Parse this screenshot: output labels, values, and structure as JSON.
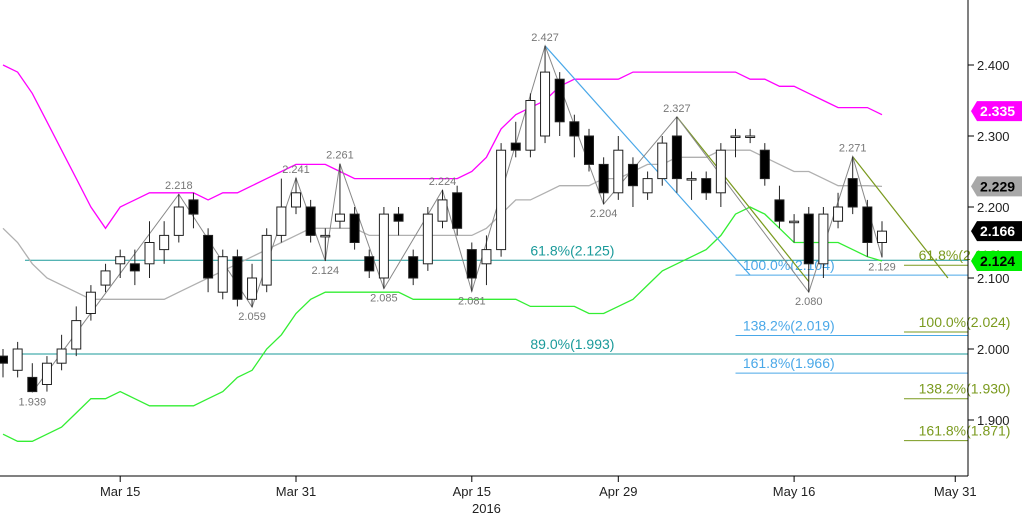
{
  "chart_data": {
    "type": "candlestick",
    "colors": {
      "upper_band": "#ff00ff",
      "lower_band": "#33ee33",
      "mid_ma": "#b0b0b0",
      "fib_teal": "#1a9a9a",
      "fib_blue": "#4aa8e8",
      "fib_olive": "#7a9a1e",
      "zigzag": "#888888",
      "candle_outline": "#222222"
    },
    "x_axis": {
      "year_label": "2016",
      "ticks": [
        {
          "label": "Mar 15",
          "index": 8
        },
        {
          "label": "Mar 31",
          "index": 20
        },
        {
          "label": "Apr 15",
          "index": 32
        },
        {
          "label": "Apr 29",
          "index": 42
        },
        {
          "label": "May 16",
          "index": 54
        },
        {
          "label": "May 31",
          "index": 65
        }
      ]
    },
    "y_axis": {
      "min": 1.83,
      "max": 2.5,
      "ticks": [
        "1.900",
        "2.000",
        "2.100",
        "2.200",
        "2.300",
        "2.400"
      ]
    },
    "candles": [
      [
        1.99,
        1.98,
        2.0,
        1.96
      ],
      [
        1.97,
        2.0,
        2.01,
        1.96
      ],
      [
        1.96,
        1.94,
        1.98,
        1.939
      ],
      [
        1.95,
        1.98,
        1.99,
        1.94
      ],
      [
        1.98,
        2.0,
        2.02,
        1.97
      ],
      [
        2.0,
        2.04,
        2.06,
        1.99
      ],
      [
        2.05,
        2.08,
        2.09,
        2.04
      ],
      [
        2.09,
        2.11,
        2.12,
        2.08
      ],
      [
        2.12,
        2.13,
        2.14,
        2.1
      ],
      [
        2.12,
        2.11,
        2.14,
        2.09
      ],
      [
        2.12,
        2.15,
        2.18,
        2.1
      ],
      [
        2.14,
        2.16,
        2.18,
        2.12
      ],
      [
        2.16,
        2.2,
        2.218,
        2.15
      ],
      [
        2.21,
        2.19,
        2.22,
        2.17
      ],
      [
        2.16,
        2.1,
        2.17,
        2.08
      ],
      [
        2.08,
        2.13,
        2.14,
        2.07
      ],
      [
        2.13,
        2.07,
        2.14,
        2.06
      ],
      [
        2.07,
        2.1,
        2.12,
        2.059
      ],
      [
        2.09,
        2.16,
        2.17,
        2.08
      ],
      [
        2.16,
        2.2,
        2.24,
        2.15
      ],
      [
        2.2,
        2.22,
        2.241,
        2.19
      ],
      [
        2.2,
        2.16,
        2.21,
        2.15
      ],
      [
        2.16,
        2.16,
        2.17,
        2.124
      ],
      [
        2.18,
        2.19,
        2.261,
        2.17
      ],
      [
        2.19,
        2.15,
        2.2,
        2.14
      ],
      [
        2.13,
        2.11,
        2.14,
        2.1
      ],
      [
        2.1,
        2.19,
        2.2,
        2.085
      ],
      [
        2.19,
        2.18,
        2.2,
        2.16
      ],
      [
        2.13,
        2.1,
        2.14,
        2.09
      ],
      [
        2.12,
        2.19,
        2.2,
        2.11
      ],
      [
        2.18,
        2.21,
        2.224,
        2.17
      ],
      [
        2.22,
        2.17,
        2.23,
        2.16
      ],
      [
        2.14,
        2.1,
        2.15,
        2.081
      ],
      [
        2.12,
        2.14,
        2.16,
        2.09
      ],
      [
        2.14,
        2.28,
        2.29,
        2.13
      ],
      [
        2.29,
        2.28,
        2.32,
        2.27
      ],
      [
        2.28,
        2.35,
        2.36,
        2.27
      ],
      [
        2.3,
        2.39,
        2.427,
        2.29
      ],
      [
        2.38,
        2.32,
        2.39,
        2.3
      ],
      [
        2.32,
        2.3,
        2.33,
        2.27
      ],
      [
        2.3,
        2.26,
        2.31,
        2.25
      ],
      [
        2.26,
        2.22,
        2.27,
        2.204
      ],
      [
        2.22,
        2.28,
        2.3,
        2.21
      ],
      [
        2.26,
        2.23,
        2.27,
        2.2
      ],
      [
        2.22,
        2.24,
        2.25,
        2.21
      ],
      [
        2.24,
        2.29,
        2.3,
        2.23
      ],
      [
        2.3,
        2.24,
        2.327,
        2.22
      ],
      [
        2.24,
        2.24,
        2.25,
        2.21
      ],
      [
        2.24,
        2.22,
        2.25,
        2.21
      ],
      [
        2.22,
        2.28,
        2.29,
        2.2
      ],
      [
        2.3,
        2.3,
        2.31,
        2.27
      ],
      [
        2.3,
        2.3,
        2.31,
        2.29
      ],
      [
        2.28,
        2.24,
        2.29,
        2.23
      ],
      [
        2.21,
        2.18,
        2.23,
        2.17
      ],
      [
        2.18,
        2.18,
        2.19,
        2.15
      ],
      [
        2.19,
        2.12,
        2.2,
        2.08
      ],
      [
        2.12,
        2.19,
        2.2,
        2.1
      ],
      [
        2.18,
        2.2,
        2.22,
        2.17
      ],
      [
        2.24,
        2.2,
        2.271,
        2.19
      ],
      [
        2.2,
        2.15,
        2.21,
        2.13
      ],
      [
        2.15,
        2.166,
        2.18,
        2.129
      ]
    ],
    "upper_band": [
      2.4,
      2.39,
      2.36,
      2.32,
      2.28,
      2.24,
      2.2,
      2.17,
      2.2,
      2.21,
      2.22,
      2.22,
      2.22,
      2.22,
      2.21,
      2.22,
      2.22,
      2.23,
      2.24,
      2.25,
      2.26,
      2.26,
      2.26,
      2.25,
      2.24,
      2.24,
      2.24,
      2.24,
      2.24,
      2.24,
      2.24,
      2.24,
      2.25,
      2.27,
      2.31,
      2.33,
      2.34,
      2.35,
      2.37,
      2.38,
      2.38,
      2.38,
      2.38,
      2.39,
      2.39,
      2.39,
      2.39,
      2.39,
      2.39,
      2.39,
      2.39,
      2.38,
      2.38,
      2.37,
      2.37,
      2.36,
      2.35,
      2.34,
      2.34,
      2.34,
      2.33
    ],
    "lower_band": [
      1.88,
      1.87,
      1.87,
      1.88,
      1.89,
      1.91,
      1.93,
      1.93,
      1.94,
      1.93,
      1.92,
      1.92,
      1.92,
      1.92,
      1.93,
      1.94,
      1.96,
      1.97,
      2.0,
      2.02,
      2.05,
      2.07,
      2.08,
      2.08,
      2.08,
      2.08,
      2.08,
      2.08,
      2.07,
      2.07,
      2.07,
      2.07,
      2.07,
      2.07,
      2.07,
      2.07,
      2.06,
      2.06,
      2.06,
      2.06,
      2.05,
      2.05,
      2.06,
      2.07,
      2.09,
      2.11,
      2.12,
      2.13,
      2.14,
      2.16,
      2.19,
      2.2,
      2.19,
      2.17,
      2.15,
      2.15,
      2.15,
      2.15,
      2.14,
      2.13,
      2.124
    ],
    "mid_ma": [
      2.17,
      2.15,
      2.12,
      2.1,
      2.09,
      2.08,
      2.07,
      2.07,
      2.07,
      2.07,
      2.07,
      2.07,
      2.08,
      2.09,
      2.1,
      2.11,
      2.12,
      2.13,
      2.14,
      2.15,
      2.16,
      2.17,
      2.17,
      2.17,
      2.17,
      2.16,
      2.16,
      2.16,
      2.16,
      2.16,
      2.16,
      2.16,
      2.16,
      2.17,
      2.19,
      2.21,
      2.21,
      2.22,
      2.23,
      2.23,
      2.23,
      2.24,
      2.24,
      2.25,
      2.26,
      2.26,
      2.27,
      2.27,
      2.27,
      2.28,
      2.28,
      2.28,
      2.27,
      2.26,
      2.25,
      2.25,
      2.24,
      2.23,
      2.23,
      2.23,
      2.229
    ],
    "zigzag": [
      {
        "i": 2,
        "v": 1.939
      },
      {
        "i": 12,
        "v": 2.218
      },
      {
        "i": 17,
        "v": 2.059
      },
      {
        "i": 20,
        "v": 2.241
      },
      {
        "i": 22,
        "v": 2.124
      },
      {
        "i": 23,
        "v": 2.261
      },
      {
        "i": 26,
        "v": 2.085
      },
      {
        "i": 30,
        "v": 2.224
      },
      {
        "i": 32,
        "v": 2.081
      },
      {
        "i": 37,
        "v": 2.427
      },
      {
        "i": 41,
        "v": 2.204
      },
      {
        "i": 46,
        "v": 2.327
      },
      {
        "i": 55,
        "v": 2.08
      },
      {
        "i": 58,
        "v": 2.271
      },
      {
        "i": 60,
        "v": 2.129
      }
    ],
    "swing_labels": [
      {
        "text": "1.939",
        "i": 2,
        "v": 1.939,
        "pos": "below"
      },
      {
        "text": "2.218",
        "i": 12,
        "v": 2.218,
        "pos": "above"
      },
      {
        "text": "2.059",
        "i": 17,
        "v": 2.059,
        "pos": "below"
      },
      {
        "text": "2.241",
        "i": 20,
        "v": 2.241,
        "pos": "above"
      },
      {
        "text": "2.124",
        "i": 22,
        "v": 2.124,
        "pos": "below"
      },
      {
        "text": "2.261",
        "i": 23,
        "v": 2.261,
        "pos": "above"
      },
      {
        "text": "2.085",
        "i": 26,
        "v": 2.085,
        "pos": "below"
      },
      {
        "text": "2.224",
        "i": 30,
        "v": 2.224,
        "pos": "above"
      },
      {
        "text": "2.081",
        "i": 32,
        "v": 2.081,
        "pos": "below"
      },
      {
        "text": "2.427",
        "i": 37,
        "v": 2.427,
        "pos": "above"
      },
      {
        "text": "2.204",
        "i": 41,
        "v": 2.204,
        "pos": "below"
      },
      {
        "text": "2.327",
        "i": 46,
        "v": 2.327,
        "pos": "above"
      },
      {
        "text": "2.080",
        "i": 55,
        "v": 2.08,
        "pos": "below"
      },
      {
        "text": "2.271",
        "i": 58,
        "v": 2.271,
        "pos": "above"
      },
      {
        "text": "2.129",
        "i": 60,
        "v": 2.129,
        "pos": "below"
      }
    ],
    "projection_lines": [
      {
        "from": {
          "i": 37,
          "v": 2.427
        },
        "to": {
          "i": 51,
          "v": 2.104
        },
        "color": "#4aa8e8"
      },
      {
        "from": {
          "i": 46,
          "v": 2.327
        },
        "to": {
          "i": 55,
          "v": 2.095
        },
        "color": "#7a9a1e"
      },
      {
        "from": {
          "i": 58,
          "v": 2.271
        },
        "to": {
          "i": 64.5,
          "v": 2.1
        },
        "color": "#7a9a1e"
      }
    ],
    "fib_levels": [
      {
        "label": "61.8%(2.125)",
        "value": 2.125,
        "color": "#1a9a9a",
        "x_start_i": 1.5,
        "label_i": 36
      },
      {
        "label": "89.0%(1.993)",
        "value": 1.993,
        "color": "#1a9a9a",
        "x_start_i": 1,
        "label_i": 36
      },
      {
        "label": "100.0%(2.104)",
        "value": 2.104,
        "color": "#4aa8e8",
        "x_start_i": 50,
        "label_i": 50.5
      },
      {
        "label": "138.2%(2.019)",
        "value": 2.019,
        "color": "#4aa8e8",
        "x_start_i": 50,
        "label_i": 50.5
      },
      {
        "label": "161.8%(1.966)",
        "value": 1.966,
        "color": "#4aa8e8",
        "x_start_i": 50,
        "label_i": 50.5
      },
      {
        "label": "61.8%(2.118)",
        "value": 2.118,
        "color": "#7a9a1e",
        "x_start_i": 61.5,
        "label_i": 62.5
      },
      {
        "label": "100.0%(2.024)",
        "value": 2.024,
        "color": "#7a9a1e",
        "x_start_i": 61.5,
        "label_i": 62.5
      },
      {
        "label": "138.2%(1.930)",
        "value": 1.93,
        "color": "#7a9a1e",
        "x_start_i": 61.5,
        "label_i": 62.5
      },
      {
        "label": "161.8%(1.871)",
        "value": 1.871,
        "color": "#7a9a1e",
        "x_start_i": 61.5,
        "label_i": 62.5
      }
    ],
    "price_badges": [
      {
        "text": "2.335",
        "value": 2.335,
        "bg": "#ff00ff",
        "fg": "#ffffff"
      },
      {
        "text": "2.229",
        "value": 2.229,
        "bg": "#a8a8a8",
        "fg": "#000000"
      },
      {
        "text": "2.166",
        "value": 2.166,
        "bg": "#000000",
        "fg": "#ffffff"
      },
      {
        "text": "2.124",
        "value": 2.124,
        "bg": "#00ee00",
        "fg": "#000000"
      }
    ]
  }
}
